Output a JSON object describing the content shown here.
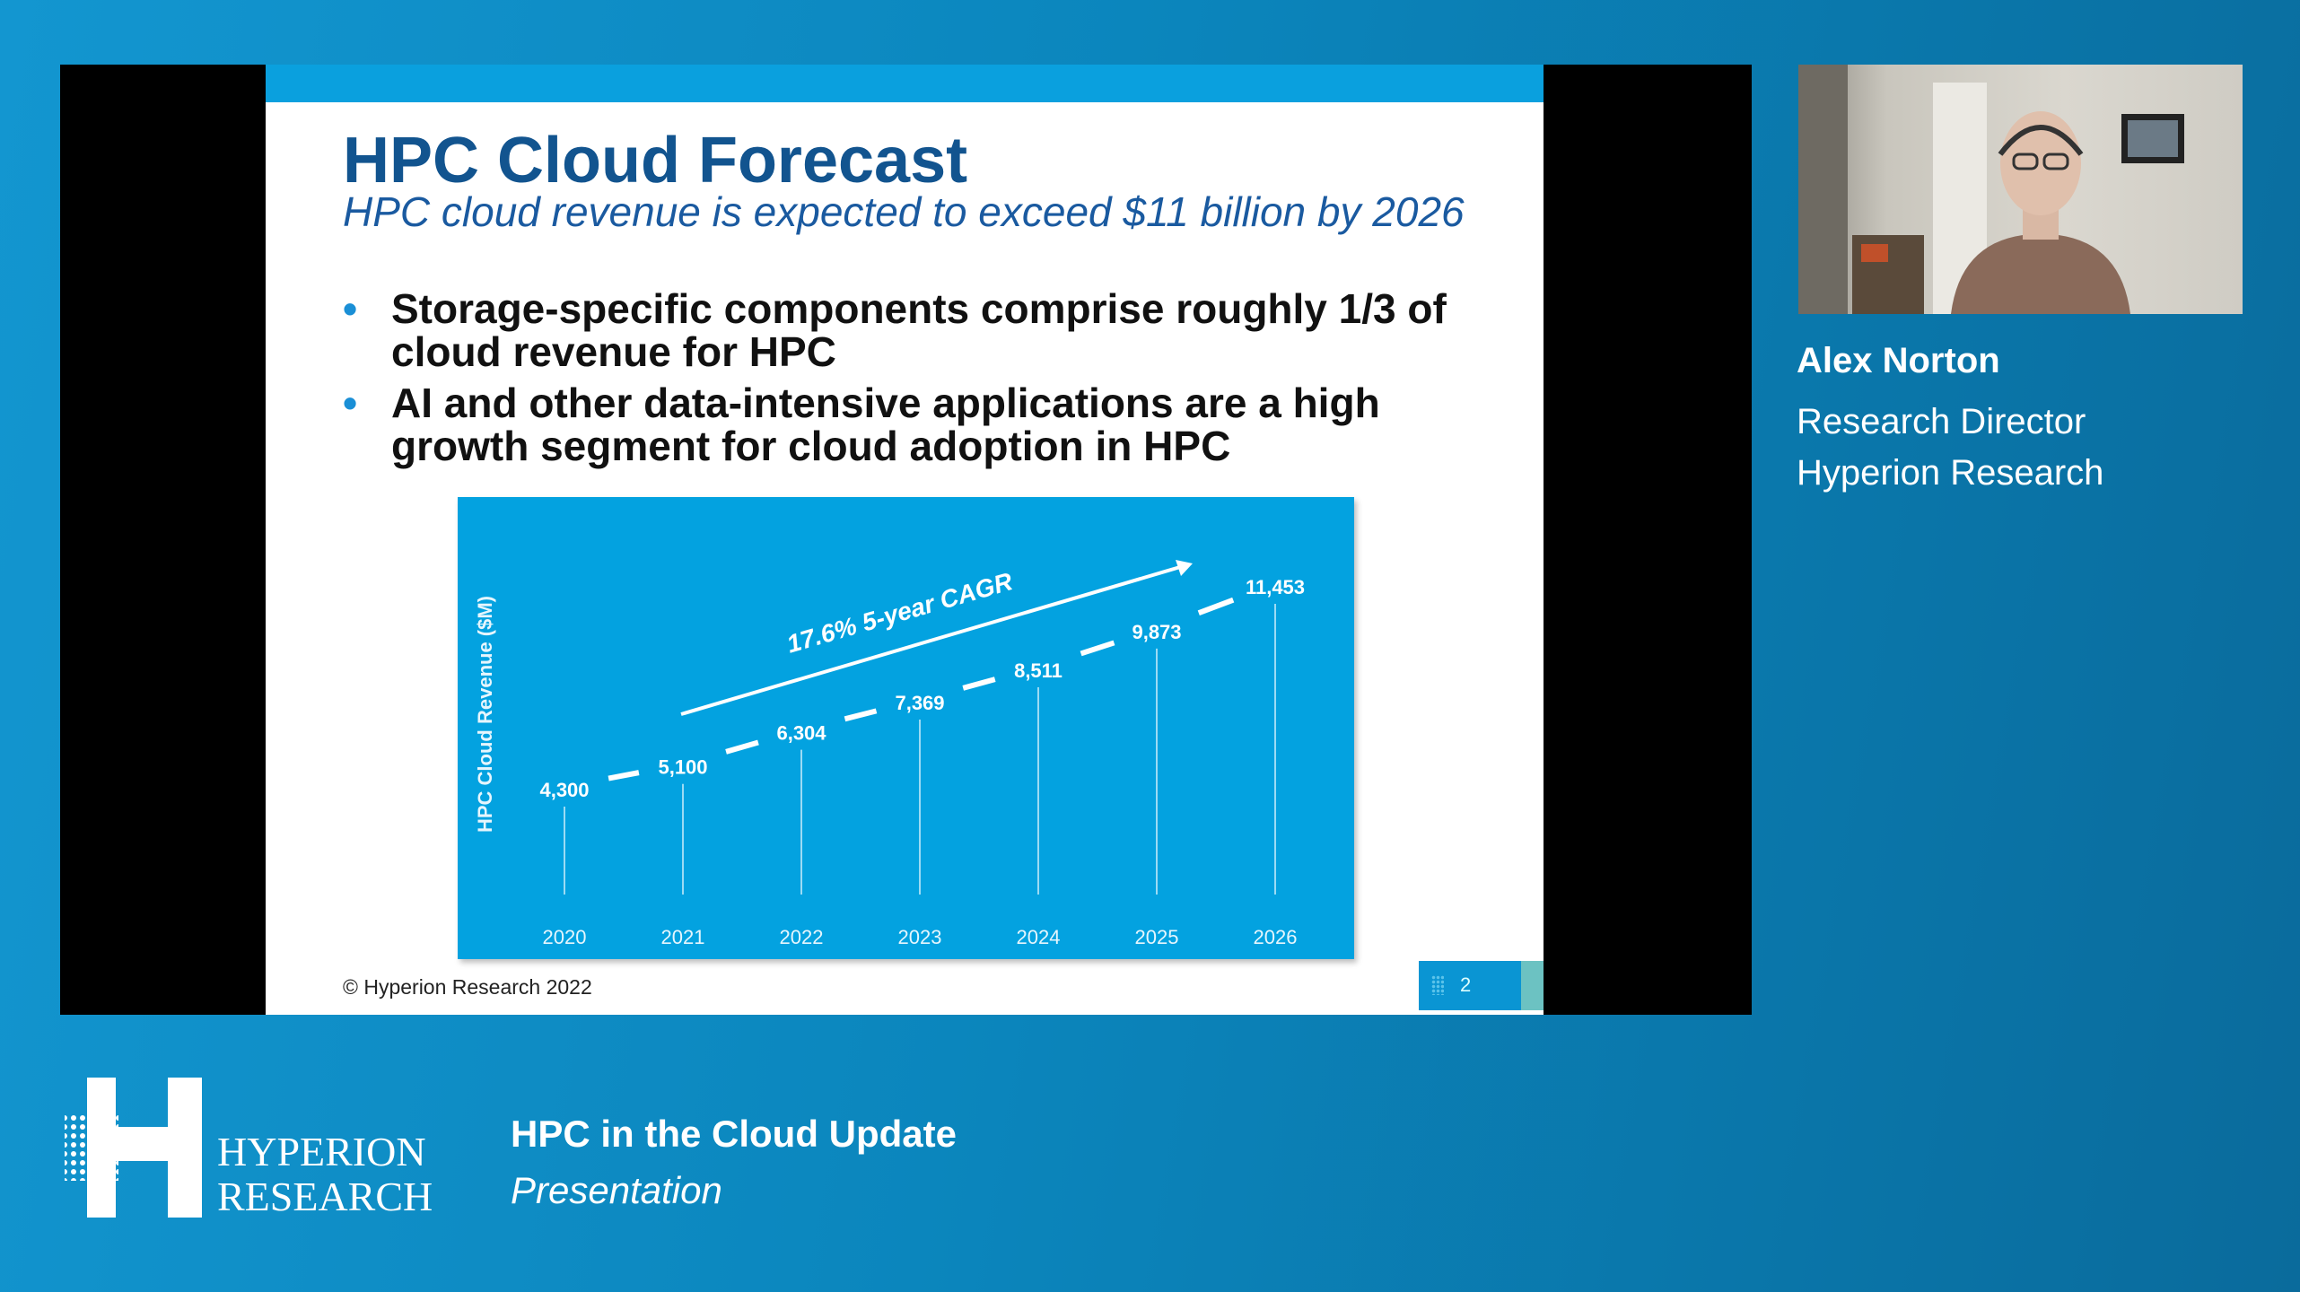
{
  "slide": {
    "title": "HPC Cloud Forecast",
    "subtitle": "HPC cloud revenue is expected to exceed $11 billion by 2026",
    "bullets": [
      "Storage-specific components comprise roughly 1/3 of cloud revenue for HPC",
      "AI and other data-intensive applications are a high growth segment for cloud adoption in HPC"
    ],
    "copyright": "© Hyperion Research 2022",
    "page_number": "2"
  },
  "chart_data": {
    "type": "line",
    "categories": [
      "2020",
      "2021",
      "2022",
      "2023",
      "2024",
      "2025",
      "2026"
    ],
    "values": [
      4300,
      5100,
      6304,
      7369,
      8511,
      9873,
      11453
    ],
    "value_labels": [
      "4,300",
      "5,100",
      "6,304",
      "7,369",
      "8,511",
      "9,873",
      "11,453"
    ],
    "ylabel": "HPC Cloud Revenue ($M)",
    "xlabel": "",
    "annotation": "17.6% 5-year CAGR",
    "grid": false,
    "colors": {
      "background": "#03a2e0",
      "marks": "#ffffff"
    }
  },
  "speaker": {
    "name": "Alex Norton",
    "role": "Research Director",
    "company": "Hyperion Research"
  },
  "branding": {
    "logo_text_line1": "HYPERION",
    "logo_text_line2": "RESEARCH"
  },
  "session": {
    "title": "HPC in the Cloud Update",
    "subtitle": "Presentation"
  }
}
